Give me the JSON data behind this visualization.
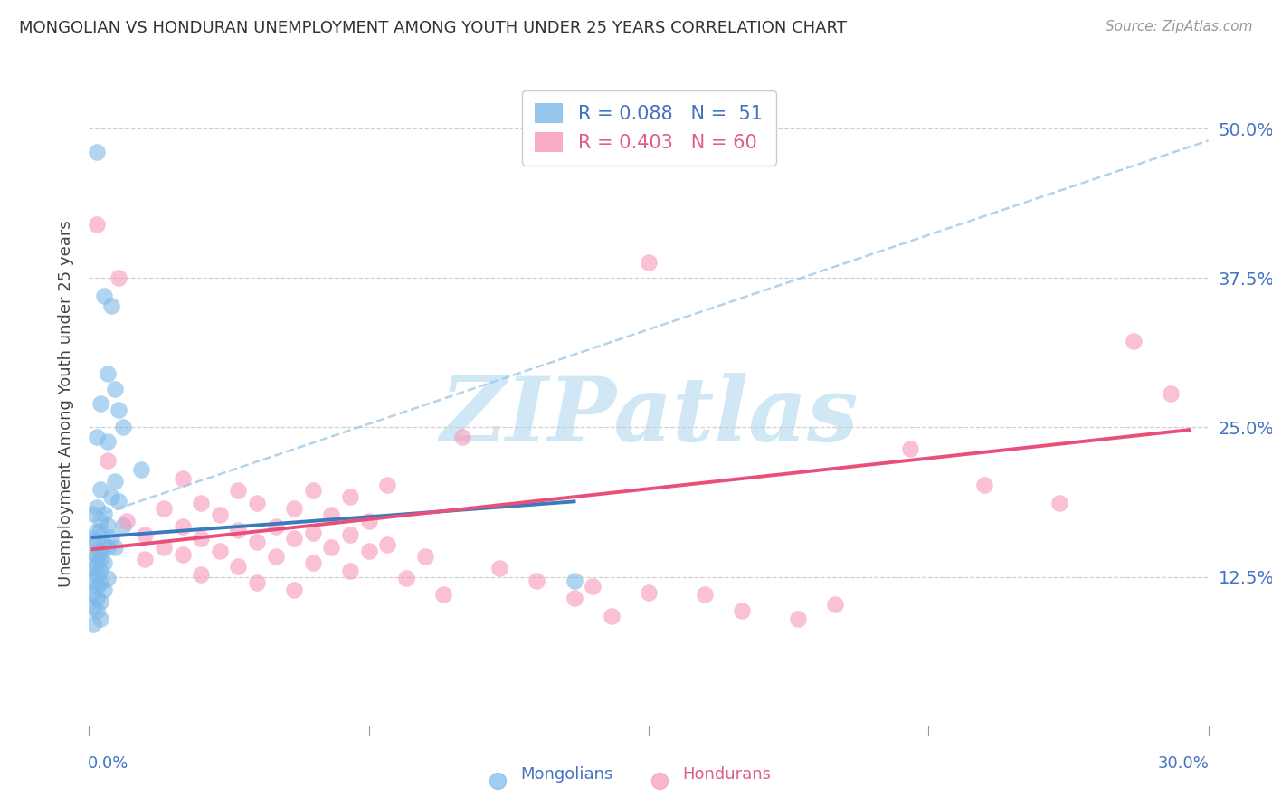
{
  "title": "MONGOLIAN VS HONDURAN UNEMPLOYMENT AMONG YOUTH UNDER 25 YEARS CORRELATION CHART",
  "source": "Source: ZipAtlas.com",
  "ylabel": "Unemployment Among Youth under 25 years",
  "right_yticks": [
    "50.0%",
    "37.5%",
    "25.0%",
    "12.5%"
  ],
  "right_ytick_vals": [
    0.5,
    0.375,
    0.25,
    0.125
  ],
  "xlim": [
    0.0,
    0.3
  ],
  "ylim": [
    0.0,
    0.54
  ],
  "mongolian_color": "#7db8e8",
  "honduran_color": "#f797bb",
  "mongolian_line_color": "#3a7abf",
  "honduran_line_color": "#e8507a",
  "mongolian_dashed_color": "#9ec8e8",
  "background_color": "#ffffff",
  "watermark_color": "#d0e8f5",
  "mongolians_scatter": [
    [
      0.002,
      0.48
    ],
    [
      0.004,
      0.36
    ],
    [
      0.006,
      0.352
    ],
    [
      0.005,
      0.295
    ],
    [
      0.007,
      0.282
    ],
    [
      0.003,
      0.27
    ],
    [
      0.008,
      0.265
    ],
    [
      0.009,
      0.25
    ],
    [
      0.002,
      0.242
    ],
    [
      0.005,
      0.238
    ],
    [
      0.014,
      0.215
    ],
    [
      0.007,
      0.205
    ],
    [
      0.003,
      0.198
    ],
    [
      0.006,
      0.192
    ],
    [
      0.008,
      0.188
    ],
    [
      0.002,
      0.183
    ],
    [
      0.001,
      0.178
    ],
    [
      0.004,
      0.178
    ],
    [
      0.003,
      0.172
    ],
    [
      0.005,
      0.168
    ],
    [
      0.009,
      0.168
    ],
    [
      0.002,
      0.163
    ],
    [
      0.003,
      0.163
    ],
    [
      0.006,
      0.158
    ],
    [
      0.001,
      0.157
    ],
    [
      0.002,
      0.155
    ],
    [
      0.004,
      0.152
    ],
    [
      0.005,
      0.15
    ],
    [
      0.007,
      0.15
    ],
    [
      0.003,
      0.147
    ],
    [
      0.001,
      0.145
    ],
    [
      0.002,
      0.142
    ],
    [
      0.003,
      0.14
    ],
    [
      0.004,
      0.137
    ],
    [
      0.002,
      0.135
    ],
    [
      0.001,
      0.132
    ],
    [
      0.003,
      0.13
    ],
    [
      0.002,
      0.127
    ],
    [
      0.005,
      0.124
    ],
    [
      0.001,
      0.122
    ],
    [
      0.003,
      0.12
    ],
    [
      0.002,
      0.117
    ],
    [
      0.004,
      0.114
    ],
    [
      0.001,
      0.11
    ],
    [
      0.002,
      0.107
    ],
    [
      0.003,
      0.104
    ],
    [
      0.001,
      0.1
    ],
    [
      0.002,
      0.097
    ],
    [
      0.13,
      0.122
    ],
    [
      0.003,
      0.09
    ],
    [
      0.001,
      0.085
    ]
  ],
  "hondurans_scatter": [
    [
      0.002,
      0.42
    ],
    [
      0.008,
      0.375
    ],
    [
      0.15,
      0.388
    ],
    [
      0.1,
      0.242
    ],
    [
      0.005,
      0.222
    ],
    [
      0.025,
      0.207
    ],
    [
      0.04,
      0.197
    ],
    [
      0.06,
      0.197
    ],
    [
      0.07,
      0.192
    ],
    [
      0.08,
      0.202
    ],
    [
      0.03,
      0.187
    ],
    [
      0.045,
      0.187
    ],
    [
      0.02,
      0.182
    ],
    [
      0.055,
      0.182
    ],
    [
      0.035,
      0.177
    ],
    [
      0.065,
      0.177
    ],
    [
      0.01,
      0.172
    ],
    [
      0.075,
      0.172
    ],
    [
      0.025,
      0.167
    ],
    [
      0.05,
      0.167
    ],
    [
      0.04,
      0.164
    ],
    [
      0.06,
      0.162
    ],
    [
      0.015,
      0.16
    ],
    [
      0.07,
      0.16
    ],
    [
      0.03,
      0.157
    ],
    [
      0.055,
      0.157
    ],
    [
      0.045,
      0.154
    ],
    [
      0.08,
      0.152
    ],
    [
      0.02,
      0.15
    ],
    [
      0.065,
      0.15
    ],
    [
      0.035,
      0.147
    ],
    [
      0.075,
      0.147
    ],
    [
      0.025,
      0.144
    ],
    [
      0.05,
      0.142
    ],
    [
      0.09,
      0.142
    ],
    [
      0.015,
      0.14
    ],
    [
      0.06,
      0.137
    ],
    [
      0.04,
      0.134
    ],
    [
      0.11,
      0.132
    ],
    [
      0.07,
      0.13
    ],
    [
      0.03,
      0.127
    ],
    [
      0.085,
      0.124
    ],
    [
      0.12,
      0.122
    ],
    [
      0.045,
      0.12
    ],
    [
      0.135,
      0.117
    ],
    [
      0.055,
      0.114
    ],
    [
      0.15,
      0.112
    ],
    [
      0.095,
      0.11
    ],
    [
      0.165,
      0.11
    ],
    [
      0.13,
      0.107
    ],
    [
      0.2,
      0.102
    ],
    [
      0.22,
      0.232
    ],
    [
      0.24,
      0.202
    ],
    [
      0.26,
      0.187
    ],
    [
      0.28,
      0.322
    ],
    [
      0.175,
      0.097
    ],
    [
      0.14,
      0.092
    ],
    [
      0.19,
      0.09
    ],
    [
      0.29,
      0.278
    ]
  ],
  "mongolian_trendline": [
    [
      0.001,
      0.158
    ],
    [
      0.13,
      0.188
    ]
  ],
  "mongolian_dashed_trendline": [
    [
      0.001,
      0.175
    ],
    [
      0.3,
      0.49
    ]
  ],
  "honduran_trendline": [
    [
      0.001,
      0.148
    ],
    [
      0.295,
      0.248
    ]
  ]
}
